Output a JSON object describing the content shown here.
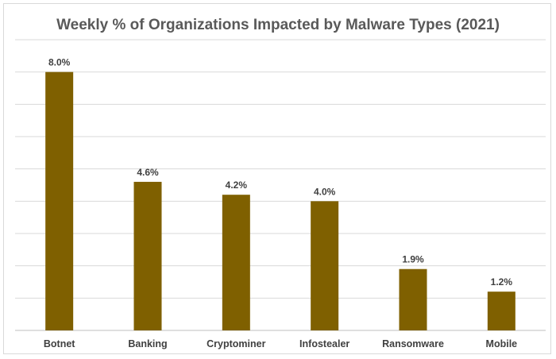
{
  "chart_data": {
    "type": "bar",
    "title": "Weekly % of Organizations Impacted by Malware Types (2021)",
    "categories": [
      "Botnet",
      "Banking",
      "Cryptominer",
      "Infostealer",
      "Ransomware",
      "Mobile"
    ],
    "values": [
      8.0,
      4.6,
      4.2,
      4.0,
      1.9,
      1.2
    ],
    "data_labels": [
      "8.0%",
      "4.6%",
      "4.2%",
      "4.0%",
      "1.9%",
      "1.2%"
    ],
    "ylim": [
      0,
      9
    ],
    "grid": true,
    "y_tick_labels_shown": false,
    "legend": "none",
    "bar_color": "#7f6000"
  }
}
